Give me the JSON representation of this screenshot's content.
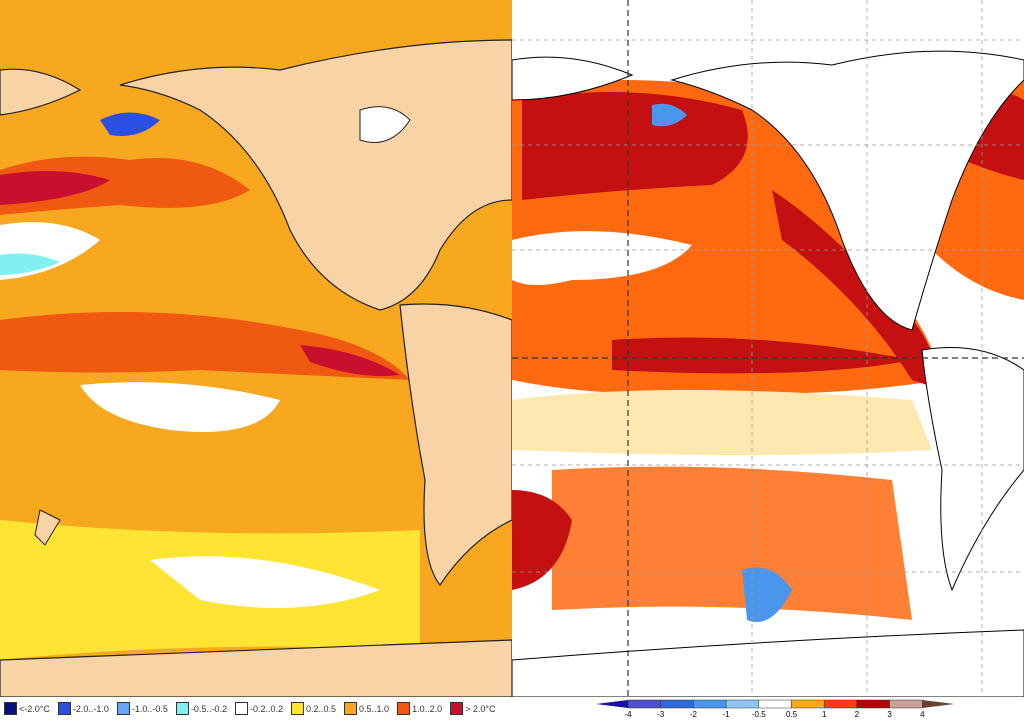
{
  "left_map": {
    "colors": {
      "ocean_base": "#f7a81f",
      "land": "#f8d3a6",
      "coast": "#222222"
    },
    "legend": [
      {
        "label": "<-2.0°C",
        "color": "#0a1080"
      },
      {
        "label": "-2.0..-1.0",
        "color": "#2b4fe0"
      },
      {
        "label": "-1.0..-0.5",
        "color": "#6aa6f0"
      },
      {
        "label": "-0.5..-0.2",
        "color": "#80f0f0"
      },
      {
        "label": "-0.2..0.2",
        "color": "#ffffff"
      },
      {
        "label": "0.2..0.5",
        "color": "#ffe433"
      },
      {
        "label": "0.5..1.0",
        "color": "#f7a81f"
      },
      {
        "label": "1.0..2.0",
        "color": "#f05a10"
      },
      {
        "label": "> 2.0°C",
        "color": "#c8102e"
      }
    ]
  },
  "right_map": {
    "colors": {
      "ocean_base": "#ff6a10",
      "warm": "#ff6a10",
      "hot": "#c41010",
      "mild": "#ffa61a",
      "cool": "#6aa6f0",
      "land": "#ffffff"
    },
    "colorbar": {
      "ticks": [
        "-4",
        "-3",
        "-2",
        "-1",
        "-0.5",
        "0.5",
        "1",
        "2",
        "3",
        "4"
      ],
      "colors": [
        "#1a10a0",
        "#5050d0",
        "#2e6ad8",
        "#4a96ec",
        "#8cc4f6",
        "#ffffff",
        "#ffa61a",
        "#ff3a10",
        "#b00808",
        "#c8a096",
        "#6a4030"
      ]
    }
  }
}
